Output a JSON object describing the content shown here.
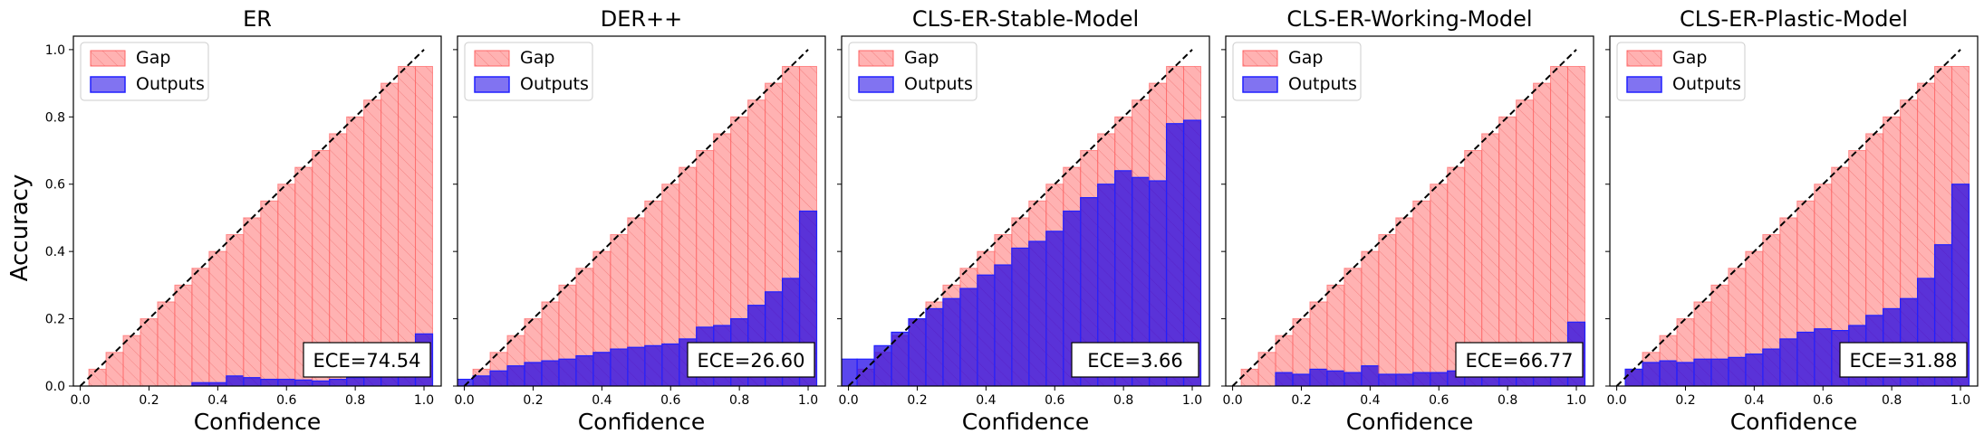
{
  "figure": {
    "ylabel": "Accuracy",
    "xlabel": "Confidence",
    "legend_labels": [
      "Gap",
      "Outputs"
    ],
    "colors": {
      "gap_fill": "#ff7f7f",
      "gap_edge": "#ff6666",
      "output_fill": "#1a00e6",
      "output_edge": "#2020ff",
      "diagonal": "#000000"
    }
  },
  "chart_data": [
    {
      "type": "bar",
      "title": "ER",
      "xlabel": "Confidence",
      "ylabel": "Accuracy",
      "xlim": [
        -0.02,
        1.05
      ],
      "ylim": [
        0.0,
        1.04
      ],
      "xticks": [
        "0.0",
        "0.2",
        "0.4",
        "0.6",
        "0.8",
        "1.0"
      ],
      "yticks": [
        "0.0",
        "0.2",
        "0.4",
        "0.6",
        "0.8",
        "1.0"
      ],
      "bin_centers": [
        0.0,
        0.05,
        0.1,
        0.15,
        0.2,
        0.25,
        0.3,
        0.35,
        0.4,
        0.45,
        0.5,
        0.55,
        0.6,
        0.65,
        0.7,
        0.75,
        0.8,
        0.85,
        0.9,
        0.95,
        1.0
      ],
      "series": [
        {
          "name": "Gap",
          "values": [
            0.0,
            0.05,
            0.1,
            0.15,
            0.2,
            0.25,
            0.3,
            0.35,
            0.4,
            0.45,
            0.5,
            0.55,
            0.6,
            0.65,
            0.7,
            0.75,
            0.8,
            0.85,
            0.9,
            0.95,
            0.95
          ]
        },
        {
          "name": "Outputs",
          "values": [
            0,
            0,
            0,
            0,
            0,
            0,
            0,
            0.01,
            0.01,
            0.03,
            0.025,
            0.02,
            0.02,
            0.018,
            0.015,
            0.02,
            0.025,
            0.03,
            0.04,
            0.08,
            0.155
          ]
        }
      ],
      "annotation": "ECE=74.54",
      "legend_position": "top-left"
    },
    {
      "type": "bar",
      "title": "DER++",
      "xlabel": "Confidence",
      "ylabel": "Accuracy",
      "xlim": [
        -0.02,
        1.05
      ],
      "ylim": [
        0.0,
        1.04
      ],
      "xticks": [
        "0.0",
        "0.2",
        "0.4",
        "0.6",
        "0.8",
        "1.0"
      ],
      "yticks": [
        "0.0",
        "0.2",
        "0.4",
        "0.6",
        "0.8",
        "1.0"
      ],
      "bin_centers": [
        0.0,
        0.05,
        0.1,
        0.15,
        0.2,
        0.25,
        0.3,
        0.35,
        0.4,
        0.45,
        0.5,
        0.55,
        0.6,
        0.65,
        0.7,
        0.75,
        0.8,
        0.85,
        0.9,
        0.95,
        1.0
      ],
      "series": [
        {
          "name": "Gap",
          "values": [
            0.0,
            0.05,
            0.1,
            0.15,
            0.2,
            0.25,
            0.3,
            0.35,
            0.4,
            0.45,
            0.5,
            0.55,
            0.6,
            0.65,
            0.7,
            0.75,
            0.8,
            0.85,
            0.9,
            0.95,
            0.95
          ]
        },
        {
          "name": "Outputs",
          "values": [
            0.02,
            0.03,
            0.045,
            0.06,
            0.07,
            0.075,
            0.08,
            0.09,
            0.1,
            0.11,
            0.115,
            0.12,
            0.125,
            0.14,
            0.175,
            0.18,
            0.2,
            0.24,
            0.28,
            0.32,
            0.52
          ]
        }
      ],
      "annotation": "ECE=26.60",
      "legend_position": "top-left"
    },
    {
      "type": "bar",
      "title": "CLS-ER-Stable-Model",
      "xlabel": "Confidence",
      "ylabel": "Accuracy",
      "xlim": [
        -0.02,
        1.05
      ],
      "ylim": [
        0.0,
        1.04
      ],
      "xticks": [
        "0.0",
        "0.2",
        "0.4",
        "0.6",
        "0.8",
        "1.0"
      ],
      "yticks": [
        "0.0",
        "0.2",
        "0.4",
        "0.6",
        "0.8",
        "1.0"
      ],
      "bin_centers": [
        0.0,
        0.05,
        0.1,
        0.15,
        0.2,
        0.25,
        0.3,
        0.35,
        0.4,
        0.45,
        0.5,
        0.55,
        0.6,
        0.65,
        0.7,
        0.75,
        0.8,
        0.85,
        0.9,
        0.95,
        1.0
      ],
      "series": [
        {
          "name": "Gap",
          "values": [
            0.0,
            0.05,
            0.1,
            0.15,
            0.2,
            0.25,
            0.3,
            0.35,
            0.4,
            0.45,
            0.5,
            0.55,
            0.6,
            0.65,
            0.7,
            0.75,
            0.8,
            0.85,
            0.9,
            0.95,
            0.95
          ]
        },
        {
          "name": "Outputs",
          "values": [
            0.08,
            0.08,
            0.12,
            0.16,
            0.2,
            0.23,
            0.26,
            0.29,
            0.33,
            0.36,
            0.41,
            0.43,
            0.46,
            0.52,
            0.56,
            0.6,
            0.64,
            0.62,
            0.61,
            0.78,
            0.79
          ]
        }
      ],
      "annotation": "ECE=3.66",
      "legend_position": "top-left"
    },
    {
      "type": "bar",
      "title": "CLS-ER-Working-Model",
      "xlabel": "Confidence",
      "ylabel": "Accuracy",
      "xlim": [
        -0.02,
        1.05
      ],
      "ylim": [
        0.0,
        1.04
      ],
      "xticks": [
        "0.0",
        "0.2",
        "0.4",
        "0.6",
        "0.8",
        "1.0"
      ],
      "yticks": [
        "0.0",
        "0.2",
        "0.4",
        "0.6",
        "0.8",
        "1.0"
      ],
      "bin_centers": [
        0.0,
        0.05,
        0.1,
        0.15,
        0.2,
        0.25,
        0.3,
        0.35,
        0.4,
        0.45,
        0.5,
        0.55,
        0.6,
        0.65,
        0.7,
        0.75,
        0.8,
        0.85,
        0.9,
        0.95,
        1.0
      ],
      "series": [
        {
          "name": "Gap",
          "values": [
            0.0,
            0.05,
            0.1,
            0.15,
            0.2,
            0.25,
            0.3,
            0.35,
            0.4,
            0.45,
            0.5,
            0.55,
            0.6,
            0.65,
            0.7,
            0.75,
            0.8,
            0.85,
            0.9,
            0.95,
            0.95
          ]
        },
        {
          "name": "Outputs",
          "values": [
            0,
            0,
            0,
            0.04,
            0.035,
            0.05,
            0.045,
            0.04,
            0.06,
            0.035,
            0.035,
            0.04,
            0.04,
            0.045,
            0.04,
            0.04,
            0.035,
            0.04,
            0.04,
            0.06,
            0.19
          ]
        }
      ],
      "annotation": "ECE=66.77",
      "legend_position": "top-left"
    },
    {
      "type": "bar",
      "title": "CLS-ER-Plastic-Model",
      "xlabel": "Confidence",
      "ylabel": "Accuracy",
      "xlim": [
        -0.02,
        1.05
      ],
      "ylim": [
        0.0,
        1.04
      ],
      "xticks": [
        "0.0",
        "0.2",
        "0.4",
        "0.6",
        "0.8",
        "1.0"
      ],
      "yticks": [
        "0.0",
        "0.2",
        "0.4",
        "0.6",
        "0.8",
        "1.0"
      ],
      "bin_centers": [
        0.0,
        0.05,
        0.1,
        0.15,
        0.2,
        0.25,
        0.3,
        0.35,
        0.4,
        0.45,
        0.5,
        0.55,
        0.6,
        0.65,
        0.7,
        0.75,
        0.8,
        0.85,
        0.9,
        0.95,
        1.0
      ],
      "series": [
        {
          "name": "Gap",
          "values": [
            0.0,
            0.05,
            0.1,
            0.15,
            0.2,
            0.25,
            0.3,
            0.35,
            0.4,
            0.45,
            0.5,
            0.55,
            0.6,
            0.65,
            0.7,
            0.75,
            0.8,
            0.85,
            0.9,
            0.95,
            0.95
          ]
        },
        {
          "name": "Outputs",
          "values": [
            0,
            0.05,
            0.07,
            0.075,
            0.07,
            0.08,
            0.08,
            0.085,
            0.095,
            0.11,
            0.14,
            0.16,
            0.17,
            0.165,
            0.18,
            0.21,
            0.23,
            0.26,
            0.32,
            0.42,
            0.6
          ]
        }
      ],
      "annotation": "ECE=31.88",
      "legend_position": "top-left"
    }
  ]
}
